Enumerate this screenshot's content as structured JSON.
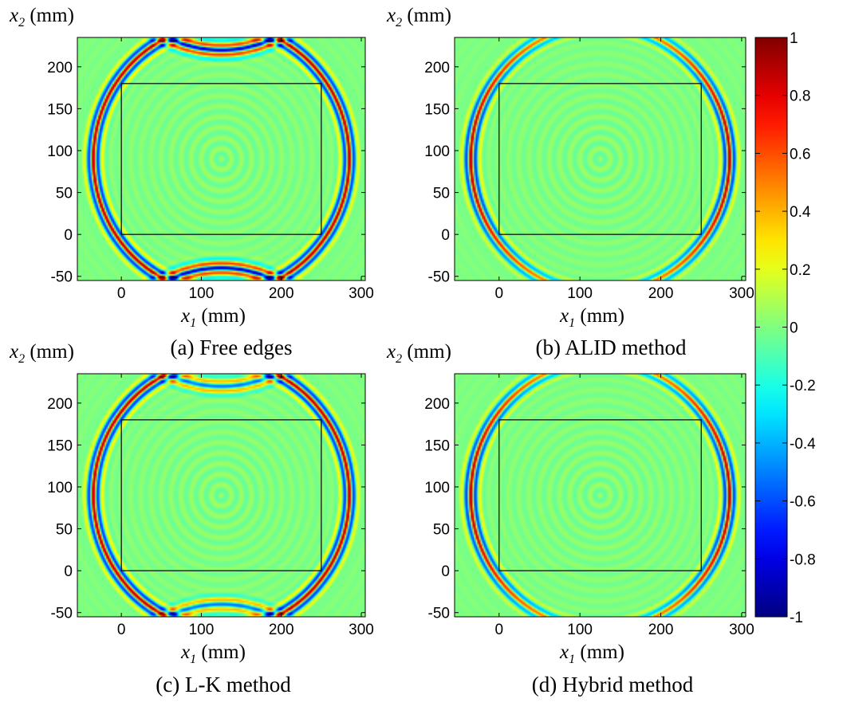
{
  "chart_data": [
    {
      "type": "heatmap",
      "caption": "(a) Free edges",
      "xlabel_var": "x",
      "xlabel_sub": "1",
      "xlabel_unit": "(mm)",
      "ylabel_var": "x",
      "ylabel_sub": "2",
      "ylabel_unit": "(mm)",
      "xlim": [
        -55,
        305
      ],
      "ylim": [
        -55,
        235
      ],
      "xticks": [
        "0",
        "100",
        "200",
        "300"
      ],
      "yticks": [
        "-50",
        "0",
        "50",
        "100",
        "150",
        "200"
      ],
      "inner_box": {
        "x": [
          0,
          250
        ],
        "y": [
          0,
          180
        ]
      },
      "source": [
        125,
        90
      ],
      "edge_reflection": "strong"
    },
    {
      "type": "heatmap",
      "caption": "(b) ALID method",
      "xlabel_var": "x",
      "xlabel_sub": "1",
      "xlabel_unit": "(mm)",
      "ylabel_var": "x",
      "ylabel_sub": "2",
      "ylabel_unit": "(mm)",
      "xlim": [
        -55,
        305
      ],
      "ylim": [
        -55,
        235
      ],
      "xticks": [
        "0",
        "100",
        "200",
        "300"
      ],
      "yticks": [
        "-50",
        "0",
        "50",
        "100",
        "150",
        "200"
      ],
      "inner_box": {
        "x": [
          0,
          250
        ],
        "y": [
          0,
          180
        ]
      },
      "source": [
        125,
        90
      ],
      "edge_reflection": "none"
    },
    {
      "type": "heatmap",
      "caption": "(c) L-K method",
      "xlabel_var": "x",
      "xlabel_sub": "1",
      "xlabel_unit": "(mm)",
      "ylabel_var": "x",
      "ylabel_sub": "2",
      "ylabel_unit": "(mm)",
      "xlim": [
        -55,
        305
      ],
      "ylim": [
        -55,
        235
      ],
      "xticks": [
        "0",
        "100",
        "200",
        "300"
      ],
      "yticks": [
        "-50",
        "0",
        "50",
        "100",
        "150",
        "200"
      ],
      "inner_box": {
        "x": [
          0,
          250
        ],
        "y": [
          0,
          180
        ]
      },
      "source": [
        125,
        90
      ],
      "edge_reflection": "moderate"
    },
    {
      "type": "heatmap",
      "caption": "(d) Hybrid method",
      "xlabel_var": "x",
      "xlabel_sub": "1",
      "xlabel_unit": "(mm)",
      "ylabel_var": "x",
      "ylabel_sub": "2",
      "ylabel_unit": "(mm)",
      "xlim": [
        -55,
        305
      ],
      "ylim": [
        -55,
        235
      ],
      "xticks": [
        "0",
        "100",
        "200",
        "300"
      ],
      "yticks": [
        "-50",
        "0",
        "50",
        "100",
        "150",
        "200"
      ],
      "inner_box": {
        "x": [
          0,
          250
        ],
        "y": [
          0,
          180
        ]
      },
      "source": [
        125,
        90
      ],
      "edge_reflection": "none"
    }
  ],
  "colorbar": {
    "colormap": "jet",
    "range": [
      -1,
      1
    ],
    "ticks": [
      "1",
      "0.8",
      "0.6",
      "0.4",
      "0.2",
      "0",
      "-0.2",
      "-0.4",
      "-0.6",
      "-0.8",
      "-1"
    ]
  }
}
